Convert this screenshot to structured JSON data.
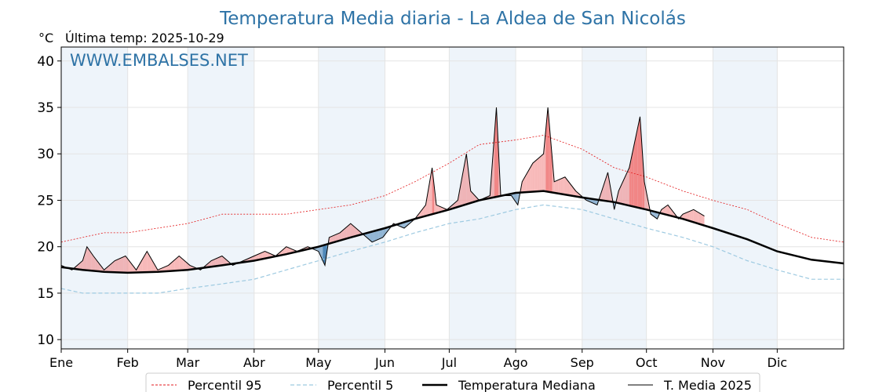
{
  "chart_data": {
    "type": "line",
    "title": "Temperatura Media diaria - La Aldea de San Nicolás",
    "unit_label": "°C",
    "subtitle": "Última temp: 2025-10-29",
    "watermark": "WWW.EMBALSES.NET",
    "ylim": [
      9,
      41.5
    ],
    "xlim": [
      0,
      365
    ],
    "yticks": [
      10,
      15,
      20,
      25,
      30,
      35,
      40
    ],
    "months": [
      {
        "label": "Ene",
        "day": 0
      },
      {
        "label": "Feb",
        "day": 31
      },
      {
        "label": "Mar",
        "day": 59
      },
      {
        "label": "Abr",
        "day": 90
      },
      {
        "label": "May",
        "day": 120
      },
      {
        "label": "Jun",
        "day": 151
      },
      {
        "label": "Jul",
        "day": 181
      },
      {
        "label": "Ago",
        "day": 212
      },
      {
        "label": "Sep",
        "day": 243
      },
      {
        "label": "Oct",
        "day": 273
      },
      {
        "label": "Nov",
        "day": 304
      },
      {
        "label": "Dic",
        "day": 334
      }
    ],
    "grid": true,
    "legend_position": "bottom",
    "colors": {
      "p95": "#e31a1c",
      "p5": "#9ecae1",
      "median": "#000000",
      "t2025": "#000000",
      "above": "#f08080",
      "below": "#4682b4",
      "band": "#ddeaf6",
      "title": "#2e73a6"
    },
    "series": [
      {
        "key": "p95",
        "name": "Percentil 95",
        "points": [
          [
            0,
            20.5
          ],
          [
            10,
            21
          ],
          [
            20,
            21.5
          ],
          [
            31,
            21.5
          ],
          [
            45,
            22
          ],
          [
            59,
            22.5
          ],
          [
            75,
            23.5
          ],
          [
            90,
            23.5
          ],
          [
            105,
            23.5
          ],
          [
            120,
            24
          ],
          [
            135,
            24.5
          ],
          [
            151,
            25.5
          ],
          [
            165,
            27
          ],
          [
            181,
            29
          ],
          [
            195,
            31
          ],
          [
            212,
            31.5
          ],
          [
            225,
            32
          ],
          [
            243,
            30.5
          ],
          [
            258,
            28.5
          ],
          [
            273,
            27.5
          ],
          [
            290,
            26
          ],
          [
            304,
            25
          ],
          [
            320,
            24
          ],
          [
            334,
            22.5
          ],
          [
            350,
            21
          ],
          [
            365,
            20.5
          ]
        ]
      },
      {
        "key": "p5",
        "name": "Percentil 5",
        "points": [
          [
            0,
            15.5
          ],
          [
            10,
            15
          ],
          [
            20,
            15
          ],
          [
            31,
            15
          ],
          [
            45,
            15
          ],
          [
            59,
            15.5
          ],
          [
            75,
            16
          ],
          [
            90,
            16.5
          ],
          [
            105,
            17.5
          ],
          [
            120,
            18.5
          ],
          [
            135,
            19.5
          ],
          [
            151,
            20.5
          ],
          [
            165,
            21.5
          ],
          [
            181,
            22.5
          ],
          [
            195,
            23
          ],
          [
            212,
            24
          ],
          [
            225,
            24.5
          ],
          [
            243,
            24
          ],
          [
            258,
            23
          ],
          [
            273,
            22
          ],
          [
            290,
            21
          ],
          [
            304,
            20
          ],
          [
            320,
            18.5
          ],
          [
            334,
            17.5
          ],
          [
            350,
            16.5
          ],
          [
            365,
            16.5
          ]
        ]
      },
      {
        "key": "median",
        "name": "Temperatura Mediana",
        "points": [
          [
            0,
            17.8
          ],
          [
            10,
            17.5
          ],
          [
            20,
            17.3
          ],
          [
            31,
            17.2
          ],
          [
            45,
            17.3
          ],
          [
            59,
            17.5
          ],
          [
            75,
            18
          ],
          [
            90,
            18.5
          ],
          [
            105,
            19.2
          ],
          [
            120,
            20
          ],
          [
            135,
            21
          ],
          [
            151,
            22
          ],
          [
            165,
            23
          ],
          [
            181,
            24
          ],
          [
            195,
            25
          ],
          [
            212,
            25.8
          ],
          [
            225,
            26
          ],
          [
            243,
            25.3
          ],
          [
            258,
            24.8
          ],
          [
            273,
            24
          ],
          [
            290,
            23
          ],
          [
            304,
            22
          ],
          [
            320,
            20.8
          ],
          [
            334,
            19.5
          ],
          [
            350,
            18.6
          ],
          [
            365,
            18.2
          ]
        ]
      },
      {
        "key": "t2025",
        "name": "T. Media 2025",
        "points": [
          [
            0,
            18
          ],
          [
            5,
            17.5
          ],
          [
            10,
            18.5
          ],
          [
            12,
            20
          ],
          [
            15,
            19
          ],
          [
            20,
            17.5
          ],
          [
            25,
            18.5
          ],
          [
            30,
            19
          ],
          [
            35,
            17.5
          ],
          [
            40,
            19.5
          ],
          [
            45,
            17.5
          ],
          [
            50,
            18
          ],
          [
            55,
            19
          ],
          [
            60,
            18
          ],
          [
            65,
            17.5
          ],
          [
            70,
            18.5
          ],
          [
            75,
            19
          ],
          [
            80,
            18
          ],
          [
            85,
            18.5
          ],
          [
            90,
            19
          ],
          [
            95,
            19.5
          ],
          [
            100,
            19
          ],
          [
            105,
            20
          ],
          [
            110,
            19.5
          ],
          [
            115,
            20
          ],
          [
            120,
            19.5
          ],
          [
            123,
            18
          ],
          [
            125,
            21
          ],
          [
            130,
            21.5
          ],
          [
            135,
            22.5
          ],
          [
            140,
            21.5
          ],
          [
            145,
            20.5
          ],
          [
            150,
            21
          ],
          [
            155,
            22.5
          ],
          [
            160,
            22
          ],
          [
            165,
            23
          ],
          [
            170,
            24.5
          ],
          [
            173,
            28.5
          ],
          [
            175,
            24.5
          ],
          [
            180,
            24
          ],
          [
            185,
            25
          ],
          [
            189,
            30
          ],
          [
            191,
            26
          ],
          [
            195,
            25
          ],
          [
            200,
            25.5
          ],
          [
            203,
            35
          ],
          [
            205,
            25.5
          ],
          [
            210,
            25.5
          ],
          [
            213,
            24.5
          ],
          [
            215,
            27
          ],
          [
            220,
            29
          ],
          [
            225,
            30
          ],
          [
            227,
            35
          ],
          [
            230,
            27
          ],
          [
            235,
            27.5
          ],
          [
            240,
            26
          ],
          [
            245,
            25
          ],
          [
            250,
            24.5
          ],
          [
            255,
            28
          ],
          [
            258,
            24
          ],
          [
            260,
            26
          ],
          [
            265,
            28.5
          ],
          [
            270,
            34
          ],
          [
            272,
            27
          ],
          [
            275,
            23.5
          ],
          [
            278,
            23
          ],
          [
            280,
            24
          ],
          [
            283,
            24.5
          ],
          [
            288,
            23
          ],
          [
            290,
            23.5
          ],
          [
            295,
            24
          ],
          [
            300,
            23.3
          ]
        ]
      }
    ],
    "legend": [
      {
        "key": "p95",
        "label": "Percentil 95"
      },
      {
        "key": "p5",
        "label": "Percentil 5"
      },
      {
        "key": "median",
        "label": "Temperatura Mediana"
      },
      {
        "key": "t2025",
        "label": "T. Media 2025"
      }
    ]
  }
}
